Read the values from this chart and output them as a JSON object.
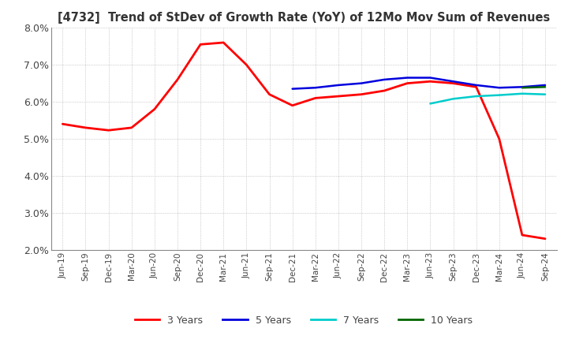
{
  "title": "[4732]  Trend of StDev of Growth Rate (YoY) of 12Mo Mov Sum of Revenues",
  "ylim": [
    0.02,
    0.08
  ],
  "yticks": [
    0.02,
    0.03,
    0.04,
    0.05,
    0.06,
    0.07,
    0.08
  ],
  "x_labels": [
    "Jun-19",
    "Sep-19",
    "Dec-19",
    "Mar-20",
    "Jun-20",
    "Sep-20",
    "Dec-20",
    "Mar-21",
    "Jun-21",
    "Sep-21",
    "Dec-21",
    "Mar-22",
    "Jun-22",
    "Sep-22",
    "Dec-22",
    "Mar-23",
    "Jun-23",
    "Sep-23",
    "Dec-23",
    "Mar-24",
    "Jun-24",
    "Sep-24"
  ],
  "series": {
    "3 Years": {
      "color": "#ff0000",
      "values": [
        0.054,
        0.053,
        0.0523,
        0.053,
        0.058,
        0.066,
        0.0755,
        0.076,
        0.07,
        0.062,
        0.059,
        0.061,
        0.0615,
        0.062,
        0.063,
        0.065,
        0.0655,
        0.065,
        0.064,
        0.05,
        0.024,
        0.023
      ]
    },
    "5 Years": {
      "color": "#0000dd",
      "values": [
        null,
        null,
        null,
        null,
        null,
        null,
        null,
        null,
        null,
        null,
        0.0635,
        0.0638,
        0.0645,
        0.065,
        0.066,
        0.0665,
        0.0665,
        0.0655,
        0.0645,
        0.0638,
        0.064,
        0.0645
      ]
    },
    "7 Years": {
      "color": "#00cccc",
      "values": [
        null,
        null,
        null,
        null,
        null,
        null,
        null,
        null,
        null,
        null,
        null,
        null,
        null,
        null,
        null,
        null,
        0.0595,
        0.0608,
        0.0615,
        0.0618,
        0.0622,
        0.062
      ]
    },
    "10 Years": {
      "color": "#006600",
      "values": [
        null,
        null,
        null,
        null,
        null,
        null,
        null,
        null,
        null,
        null,
        null,
        null,
        null,
        null,
        null,
        null,
        null,
        null,
        null,
        null,
        0.0638,
        0.064
      ]
    }
  },
  "legend_labels": [
    "3 Years",
    "5 Years",
    "7 Years",
    "10 Years"
  ],
  "legend_colors": [
    "#ff0000",
    "#0000dd",
    "#00cccc",
    "#006600"
  ],
  "background_color": "#ffffff",
  "grid_color": "#aaaaaa"
}
